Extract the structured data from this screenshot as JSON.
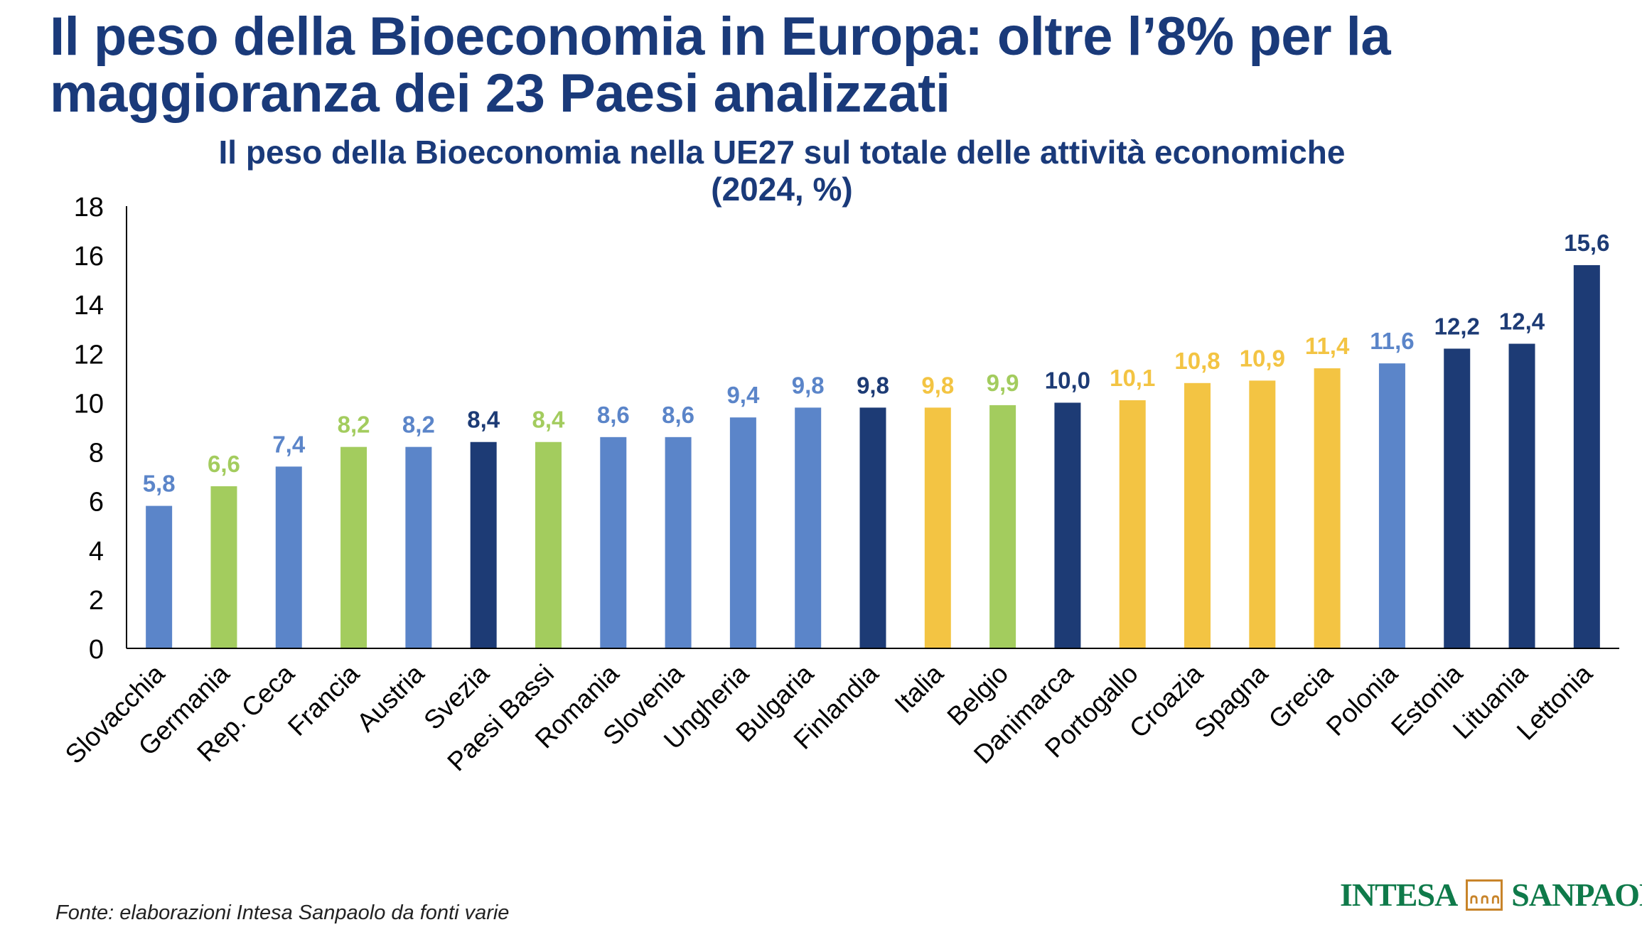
{
  "headline": "Il peso della Bioeconomia in Europa: oltre l’8% per la maggioranza dei 23 Paesi analizzati",
  "source": "Fonte: elaborazioni Intesa Sanpaolo da fonti varie",
  "logo": {
    "left": "INTESA",
    "right": "SANPAOLO",
    "icon": "bridge-arches-icon"
  },
  "colors": {
    "light_blue": "#5b85c9",
    "green": "#a3cc5e",
    "dark_blue": "#1d3b75",
    "yellow": "#f3c443",
    "title": "#1a3a7a"
  },
  "chart_data": {
    "type": "bar",
    "title": "Il peso della Bioeconomia nella UE27 sul totale delle attività economiche",
    "subtitle": "(2024, %)",
    "xlabel": "",
    "ylabel": "",
    "ylim": [
      0,
      18
    ],
    "yticks": [
      "0",
      "2",
      "4",
      "6",
      "8",
      "10",
      "12",
      "14",
      "16",
      "18"
    ],
    "grid": false,
    "legend": "none",
    "categories": [
      "Slovacchia",
      "Germania",
      "Rep. Ceca",
      "Francia",
      "Austria",
      "Svezia",
      "Paesi Bassi",
      "Romania",
      "Slovenia",
      "Ungheria",
      "Bulgaria",
      "Finlandia",
      "Italia",
      "Belgio",
      "Danimarca",
      "Portogallo",
      "Croazia",
      "Spagna",
      "Grecia",
      "Polonia",
      "Estonia",
      "Lituania",
      "Lettonia"
    ],
    "values": [
      5.8,
      6.6,
      7.4,
      8.2,
      8.2,
      8.4,
      8.4,
      8.6,
      8.6,
      9.4,
      9.8,
      9.8,
      9.8,
      9.9,
      10.0,
      10.1,
      10.8,
      10.9,
      11.4,
      11.6,
      12.2,
      12.4,
      15.6
    ],
    "value_labels": [
      "5,8",
      "6,6",
      "7,4",
      "8,2",
      "8,2",
      "8,4",
      "8,4",
      "8,6",
      "8,6",
      "9,4",
      "9,8",
      "9,8",
      "9,8",
      "9,9",
      "10,0",
      "10,1",
      "10,8",
      "10,9",
      "11,4",
      "11,6",
      "12,2",
      "12,4",
      "15,6"
    ],
    "bar_colors": [
      "#5b85c9",
      "#a3cc5e",
      "#5b85c9",
      "#a3cc5e",
      "#5b85c9",
      "#1d3b75",
      "#a3cc5e",
      "#5b85c9",
      "#5b85c9",
      "#5b85c9",
      "#5b85c9",
      "#1d3b75",
      "#f3c443",
      "#a3cc5e",
      "#1d3b75",
      "#f3c443",
      "#f3c443",
      "#f3c443",
      "#f3c443",
      "#5b85c9",
      "#1d3b75",
      "#1d3b75",
      "#1d3b75"
    ]
  }
}
